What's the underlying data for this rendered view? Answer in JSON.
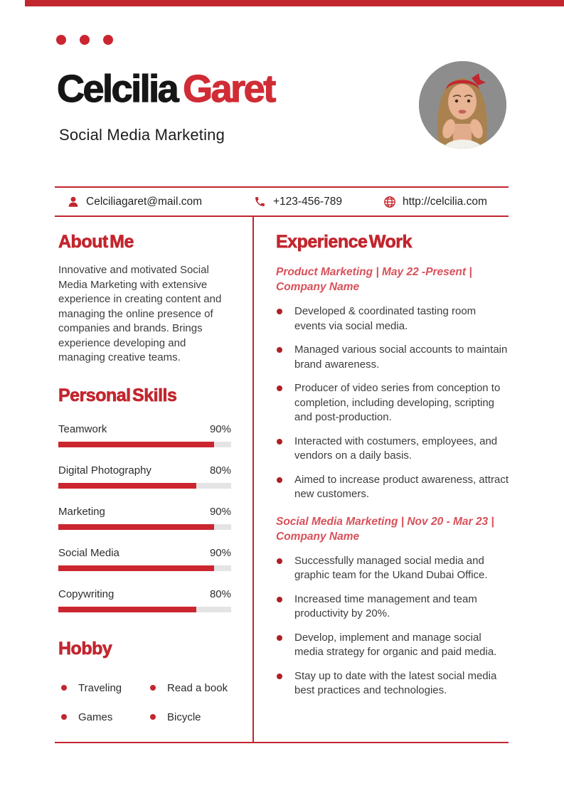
{
  "accent_color": "#c2262e",
  "header": {
    "first_name": "Celcilia",
    "last_name": "Garet",
    "subtitle": "Social Media Marketing"
  },
  "photo": {
    "label": "profile-photo"
  },
  "contact": {
    "email": "Celciliagaret@mail.com",
    "phone": "+123-456-789",
    "website": "http://celcilia.com"
  },
  "about": {
    "heading": "About Me",
    "text": "Innovative and motivated Social Media Marketing with extensive experience in creating content and managing the online presence of companies and brands. Brings experience developing and managing creative teams."
  },
  "skills": {
    "heading": "Personal Skills",
    "items": [
      {
        "label": "Teamwork",
        "percent": 90,
        "percent_label": "90%"
      },
      {
        "label": "Digital Photography",
        "percent": 80,
        "percent_label": "80%"
      },
      {
        "label": "Marketing",
        "percent": 90,
        "percent_label": "90%"
      },
      {
        "label": "Social Media",
        "percent": 90,
        "percent_label": "90%"
      },
      {
        "label": "Copywriting",
        "percent": 80,
        "percent_label": "80%"
      }
    ]
  },
  "hobby": {
    "heading": "Hobby",
    "items": [
      "Traveling",
      "Read a book",
      "Games",
      "Bicycle"
    ]
  },
  "experience": {
    "heading": "Experience Work",
    "jobs": [
      {
        "title_lines": [
          "Product Marketing | May 22 -Present |",
          "Company Name"
        ],
        "bullets": [
          "Developed & coordinated tasting room events via social media.",
          "Managed various social accounts to maintain brand awareness.",
          "Producer of video series from conception to completion, including developing, scripting and post-production.",
          "Interacted with costumers, employees, and vendors on a daily basis.",
          "Aimed to increase product awareness, attract new customers."
        ]
      },
      {
        "title_lines": [
          "Social Media Marketing | Nov 20 - Mar 23 |",
          "Company Name"
        ],
        "bullets": [
          "Successfully managed social media and graphic team for the Ukand Dubai Office.",
          "Increased time management and team productivity by 20%.",
          "Develop, implement and manage social media strategy for organic and paid media.",
          "Stay up to date with the latest social media best practices and technologies."
        ]
      }
    ]
  }
}
